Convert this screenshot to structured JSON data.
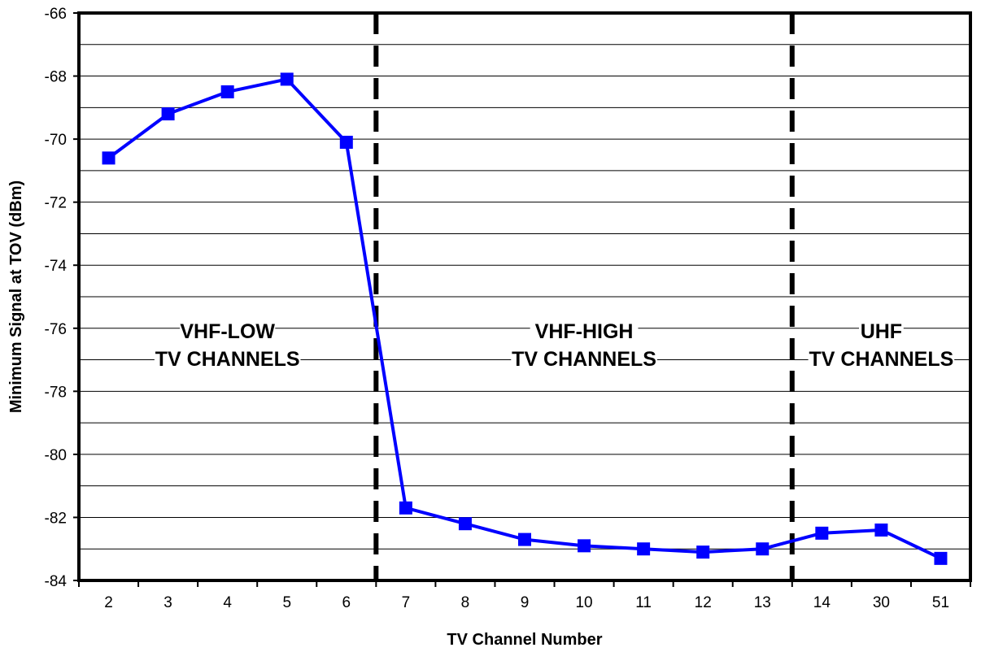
{
  "chart_data": {
    "type": "line",
    "xlabel": "TV Channel Number",
    "ylabel": "Minimum Signal at TOV (dBm)",
    "categories": [
      "2",
      "3",
      "4",
      "5",
      "6",
      "7",
      "8",
      "9",
      "10",
      "11",
      "12",
      "13",
      "14",
      "30",
      "51"
    ],
    "series": [
      {
        "values": [
          -70.6,
          -69.2,
          -68.5,
          -68.1,
          -70.1,
          -81.7,
          -82.2,
          -82.7,
          -82.9,
          -83.0,
          -83.1,
          -83.0,
          -82.5,
          -82.4,
          -83.3
        ],
        "color": "#0000ff",
        "marker": "square"
      }
    ],
    "ylim": [
      -84,
      -66
    ],
    "yticks": [
      -66,
      -68,
      -70,
      -72,
      -74,
      -76,
      -78,
      -80,
      -82,
      -84
    ],
    "grid_step": 1,
    "grid": true,
    "band_dividers_after": [
      "6",
      "13"
    ],
    "bands": [
      {
        "line1": "VHF-LOW",
        "line2": "TV CHANNELS"
      },
      {
        "line1": "VHF-HIGH",
        "line2": "TV CHANNELS"
      },
      {
        "line1": "UHF",
        "line2": "TV CHANNELS"
      }
    ]
  }
}
